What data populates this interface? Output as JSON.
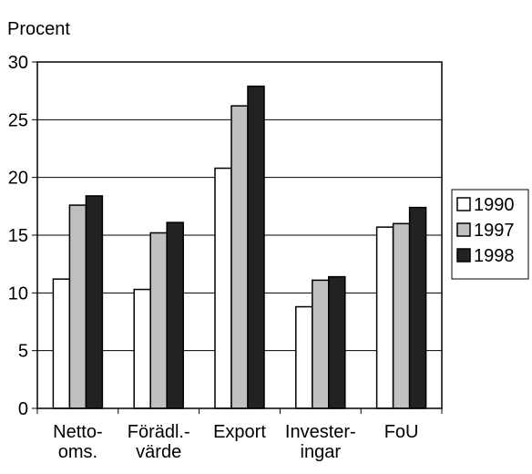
{
  "chart_data": {
    "type": "bar",
    "ylabel": "Procent",
    "ylim": [
      0,
      30
    ],
    "yticks": [
      0,
      5,
      10,
      15,
      20,
      25,
      30
    ],
    "grid": true,
    "legend_position": "right",
    "categories": [
      [
        "Netto-",
        "oms."
      ],
      [
        "Förädl.-",
        "värde"
      ],
      [
        "Export"
      ],
      [
        "Invester-",
        "ingar"
      ],
      [
        "FoU"
      ]
    ],
    "series": [
      {
        "name": "1990",
        "color": "#ffffff",
        "values": [
          11.2,
          10.3,
          20.8,
          8.8,
          15.7
        ]
      },
      {
        "name": "1997",
        "color": "#c0c0c0",
        "values": [
          17.6,
          15.2,
          26.2,
          11.1,
          16.0
        ]
      },
      {
        "name": "1998",
        "color": "#222222",
        "values": [
          18.4,
          16.1,
          27.9,
          11.4,
          17.4
        ]
      }
    ]
  }
}
